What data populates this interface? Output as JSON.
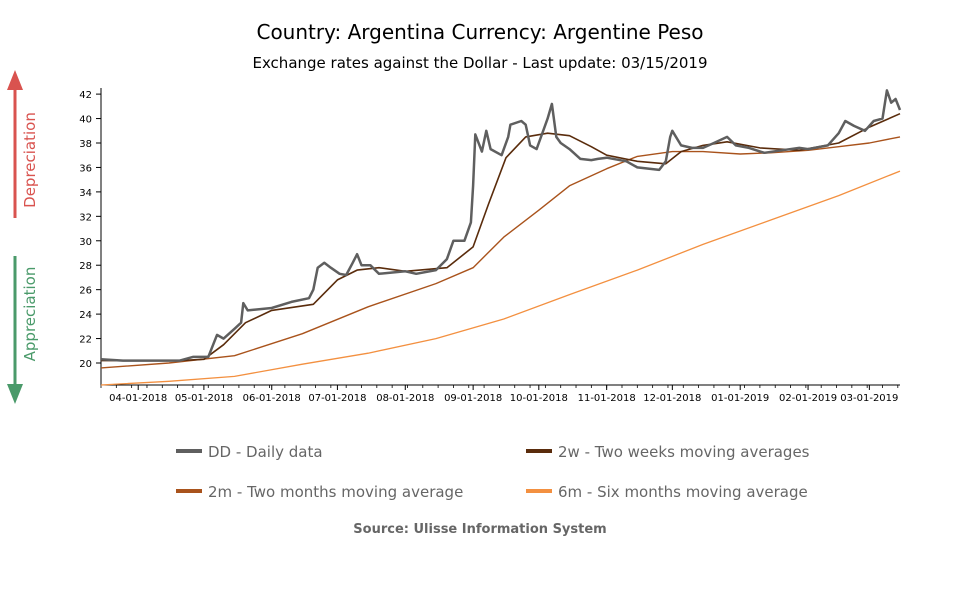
{
  "chart_data": {
    "type": "line",
    "title": "Country: Argentina Currency: Argentine Peso",
    "subtitle": "Exchange rates against the Dollar - Last update: 03/15/2019",
    "source": "Source: Ulisse Information System",
    "side_labels": {
      "upper": "Depreciation",
      "lower": "Appreciation"
    },
    "colors": {
      "up_arrow": "#d9534f",
      "down_arrow": "#4a9a6a",
      "dd": "#5f5f5f",
      "w2": "#5a2c0c",
      "m2": "#a9531c",
      "m6": "#f39040"
    },
    "x_ticks": [
      "04-01-2018",
      "05-01-2018",
      "06-01-2018",
      "07-01-2018",
      "08-01-2018",
      "09-01-2018",
      "10-01-2018",
      "11-01-2018",
      "12-01-2018",
      "01-01-2019",
      "02-01-2019",
      "03-01-2019"
    ],
    "xlim": [
      "2018-03-15",
      "2019-03-15"
    ],
    "ylim": [
      18.2,
      42.5
    ],
    "y_ticks": [
      20,
      22,
      24,
      26,
      28,
      30,
      32,
      34,
      36,
      38,
      40,
      42
    ],
    "legend": [
      {
        "key": "dd",
        "label": "DD - Daily data"
      },
      {
        "key": "w2",
        "label": "2w - Two weeks moving averages"
      },
      {
        "key": "m2",
        "label": "2m - Two months moving average"
      },
      {
        "key": "m6",
        "label": "6m - Six months moving average"
      }
    ],
    "series": [
      {
        "key": "dd",
        "name": "DD - Daily data",
        "points": [
          [
            "2018-03-15",
            20.3
          ],
          [
            "2018-03-25",
            20.2
          ],
          [
            "2018-04-05",
            20.2
          ],
          [
            "2018-04-20",
            20.2
          ],
          [
            "2018-04-26",
            20.5
          ],
          [
            "2018-05-03",
            20.5
          ],
          [
            "2018-05-07",
            22.3
          ],
          [
            "2018-05-10",
            22.0
          ],
          [
            "2018-05-15",
            22.8
          ],
          [
            "2018-05-18",
            23.3
          ],
          [
            "2018-05-19",
            24.9
          ],
          [
            "2018-05-21",
            24.3
          ],
          [
            "2018-06-01",
            24.5
          ],
          [
            "2018-06-10",
            25.0
          ],
          [
            "2018-06-18",
            25.3
          ],
          [
            "2018-06-20",
            26.0
          ],
          [
            "2018-06-22",
            27.8
          ],
          [
            "2018-06-25",
            28.2
          ],
          [
            "2018-06-28",
            27.8
          ],
          [
            "2018-07-02",
            27.3
          ],
          [
            "2018-07-05",
            27.2
          ],
          [
            "2018-07-08",
            28.2
          ],
          [
            "2018-07-10",
            28.9
          ],
          [
            "2018-07-12",
            28.0
          ],
          [
            "2018-07-16",
            28.0
          ],
          [
            "2018-07-20",
            27.3
          ],
          [
            "2018-08-01",
            27.5
          ],
          [
            "2018-08-06",
            27.3
          ],
          [
            "2018-08-15",
            27.6
          ],
          [
            "2018-08-20",
            28.5
          ],
          [
            "2018-08-23",
            30.0
          ],
          [
            "2018-08-28",
            30.0
          ],
          [
            "2018-08-31",
            31.5
          ],
          [
            "2018-09-01",
            34.5
          ],
          [
            "2018-09-02",
            38.7
          ],
          [
            "2018-09-05",
            37.3
          ],
          [
            "2018-09-07",
            39.0
          ],
          [
            "2018-09-09",
            37.5
          ],
          [
            "2018-09-14",
            37.0
          ],
          [
            "2018-09-17",
            38.5
          ],
          [
            "2018-09-18",
            39.5
          ],
          [
            "2018-09-23",
            39.8
          ],
          [
            "2018-09-25",
            39.5
          ],
          [
            "2018-09-27",
            37.8
          ],
          [
            "2018-09-30",
            37.5
          ],
          [
            "2018-10-01",
            38.0
          ],
          [
            "2018-10-05",
            40.0
          ],
          [
            "2018-10-07",
            41.2
          ],
          [
            "2018-10-09",
            38.5
          ],
          [
            "2018-10-11",
            38.0
          ],
          [
            "2018-10-15",
            37.5
          ],
          [
            "2018-10-20",
            36.7
          ],
          [
            "2018-10-25",
            36.6
          ],
          [
            "2018-10-28",
            36.7
          ],
          [
            "2018-11-01",
            36.8
          ],
          [
            "2018-11-10",
            36.5
          ],
          [
            "2018-11-15",
            36.0
          ],
          [
            "2018-11-25",
            35.8
          ],
          [
            "2018-11-28",
            36.5
          ],
          [
            "2018-11-30",
            38.5
          ],
          [
            "2018-12-01",
            39.0
          ],
          [
            "2018-12-05",
            37.8
          ],
          [
            "2018-12-10",
            37.6
          ],
          [
            "2018-12-15",
            37.6
          ],
          [
            "2018-12-20",
            38.0
          ],
          [
            "2018-12-26",
            38.5
          ],
          [
            "2018-12-30",
            37.8
          ],
          [
            "2019-01-05",
            37.6
          ],
          [
            "2019-01-12",
            37.2
          ],
          [
            "2019-01-20",
            37.4
          ],
          [
            "2019-01-28",
            37.6
          ],
          [
            "2019-02-01",
            37.5
          ],
          [
            "2019-02-10",
            37.8
          ],
          [
            "2019-02-15",
            38.8
          ],
          [
            "2019-02-18",
            39.8
          ],
          [
            "2019-02-22",
            39.4
          ],
          [
            "2019-02-27",
            39.0
          ],
          [
            "2019-03-03",
            39.8
          ],
          [
            "2019-03-07",
            40.0
          ],
          [
            "2019-03-09",
            42.3
          ],
          [
            "2019-03-11",
            41.3
          ],
          [
            "2019-03-13",
            41.6
          ],
          [
            "2019-03-15",
            40.7
          ]
        ]
      },
      {
        "key": "w2",
        "name": "2w - Two weeks moving averages",
        "points": [
          [
            "2018-03-15",
            20.2
          ],
          [
            "2018-04-20",
            20.2
          ],
          [
            "2018-05-01",
            20.3
          ],
          [
            "2018-05-10",
            21.5
          ],
          [
            "2018-05-20",
            23.3
          ],
          [
            "2018-06-01",
            24.3
          ],
          [
            "2018-06-20",
            24.8
          ],
          [
            "2018-07-01",
            26.8
          ],
          [
            "2018-07-10",
            27.6
          ],
          [
            "2018-07-20",
            27.8
          ],
          [
            "2018-08-01",
            27.5
          ],
          [
            "2018-08-20",
            27.8
          ],
          [
            "2018-09-01",
            29.5
          ],
          [
            "2018-09-08",
            33.0
          ],
          [
            "2018-09-16",
            36.8
          ],
          [
            "2018-09-25",
            38.5
          ],
          [
            "2018-10-05",
            38.8
          ],
          [
            "2018-10-15",
            38.6
          ],
          [
            "2018-10-25",
            37.7
          ],
          [
            "2018-11-01",
            37.0
          ],
          [
            "2018-11-15",
            36.5
          ],
          [
            "2018-11-28",
            36.3
          ],
          [
            "2018-12-05",
            37.3
          ],
          [
            "2018-12-15",
            37.8
          ],
          [
            "2018-12-26",
            38.1
          ],
          [
            "2019-01-10",
            37.6
          ],
          [
            "2019-01-28",
            37.4
          ],
          [
            "2019-02-15",
            38.0
          ],
          [
            "2019-03-01",
            39.3
          ],
          [
            "2019-03-15",
            40.4
          ]
        ]
      },
      {
        "key": "m2",
        "name": "2m - Two months moving average",
        "points": [
          [
            "2018-03-15",
            19.6
          ],
          [
            "2018-04-15",
            20.0
          ],
          [
            "2018-05-15",
            20.6
          ],
          [
            "2018-06-15",
            22.4
          ],
          [
            "2018-07-15",
            24.6
          ],
          [
            "2018-08-15",
            26.5
          ],
          [
            "2018-09-01",
            27.8
          ],
          [
            "2018-09-15",
            30.3
          ],
          [
            "2018-10-01",
            32.5
          ],
          [
            "2018-10-15",
            34.5
          ],
          [
            "2018-11-01",
            35.9
          ],
          [
            "2018-11-15",
            36.9
          ],
          [
            "2018-12-01",
            37.3
          ],
          [
            "2018-12-15",
            37.3
          ],
          [
            "2019-01-01",
            37.1
          ],
          [
            "2019-01-15",
            37.2
          ],
          [
            "2019-02-01",
            37.4
          ],
          [
            "2019-02-15",
            37.7
          ],
          [
            "2019-03-01",
            38.0
          ],
          [
            "2019-03-15",
            38.5
          ]
        ]
      },
      {
        "key": "m6",
        "name": "6m - Six months moving average",
        "points": [
          [
            "2018-03-15",
            18.2
          ],
          [
            "2018-04-15",
            18.5
          ],
          [
            "2018-05-15",
            18.9
          ],
          [
            "2018-06-15",
            19.9
          ],
          [
            "2018-07-15",
            20.8
          ],
          [
            "2018-08-15",
            22.0
          ],
          [
            "2018-09-15",
            23.6
          ],
          [
            "2018-10-15",
            25.6
          ],
          [
            "2018-11-15",
            27.6
          ],
          [
            "2018-12-15",
            29.7
          ],
          [
            "2019-01-15",
            31.7
          ],
          [
            "2019-02-15",
            33.7
          ],
          [
            "2019-03-15",
            35.7
          ]
        ]
      }
    ]
  }
}
